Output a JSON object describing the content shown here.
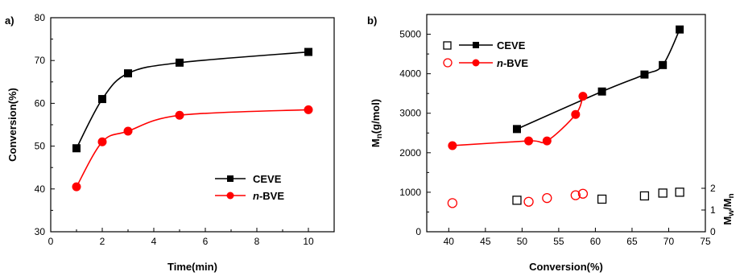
{
  "chart_data": [
    {
      "type": "line",
      "panel": "a)",
      "xlabel": "Time(min)",
      "ylabel": "Conversion(%)",
      "xlim": [
        0,
        11
      ],
      "ylim": [
        30,
        80
      ],
      "xticks": [
        "0",
        "2",
        "4",
        "6",
        "8",
        "10"
      ],
      "yticks": [
        "30",
        "40",
        "50",
        "60",
        "70",
        "80"
      ],
      "legend_position": "bottom-right",
      "series": [
        {
          "name": "CEVE",
          "name_plain": "CEVE",
          "color": "#000000",
          "marker": "square-filled",
          "x": [
            1,
            2,
            3,
            5,
            10
          ],
          "y": [
            49.5,
            61,
            67,
            69.5,
            72
          ]
        },
        {
          "name": "n-BVE",
          "name_prefix": "n",
          "name_plain": "-BVE",
          "color": "#ff0000",
          "marker": "circle-filled",
          "x": [
            1,
            2,
            3,
            5,
            10
          ],
          "y": [
            40.5,
            51,
            53.5,
            57.2,
            58.5
          ]
        }
      ]
    },
    {
      "type": "scatter",
      "panel": "b)",
      "xlabel": "Conversion(%)",
      "ylabel_main": "M",
      "ylabel_sub": "n",
      "ylabel_rest": "(g/mol)",
      "y2label_main": "M",
      "y2label_sub1": "w",
      "y2label_mid": "/M",
      "y2label_sub2": "n",
      "xlim": [
        37,
        75
      ],
      "ylim": [
        0,
        5500
      ],
      "y2lim": [
        0,
        10
      ],
      "xticks": [
        "40",
        "45",
        "50",
        "55",
        "60",
        "65",
        "70",
        "75"
      ],
      "yticks": [
        "0",
        "1000",
        "2000",
        "3000",
        "4000",
        "5000"
      ],
      "y2ticks": [
        "0",
        "1",
        "2"
      ],
      "legend_position": "top-left",
      "series": [
        {
          "name": "CEVE",
          "name_plain": "CEVE",
          "color": "#000000",
          "marker": "square-filled",
          "axis": "left",
          "x": [
            49.3,
            60.9,
            66.7,
            69.2,
            71.5
          ],
          "y": [
            2600,
            3550,
            3980,
            4220,
            5120
          ]
        },
        {
          "name": "n-BVE",
          "name_prefix": "n",
          "name_plain": "-BVE",
          "color": "#ff0000",
          "marker": "circle-filled",
          "axis": "left",
          "x": [
            40.5,
            50.9,
            53.4,
            57.3,
            58.3
          ],
          "y": [
            2180,
            2300,
            2300,
            2970,
            3430
          ]
        },
        {
          "name": "CEVE Mw/Mn",
          "color": "#000000",
          "marker": "square-open",
          "axis": "right",
          "x": [
            49.3,
            60.9,
            66.7,
            69.2,
            71.5
          ],
          "y": [
            1.45,
            1.5,
            1.65,
            1.78,
            1.82
          ]
        },
        {
          "name": "n-BVE Mw/Mn",
          "color": "#ff0000",
          "marker": "circle-open",
          "axis": "right",
          "x": [
            40.5,
            50.9,
            53.4,
            57.3,
            58.3
          ],
          "y": [
            1.32,
            1.38,
            1.55,
            1.68,
            1.75
          ]
        }
      ]
    }
  ]
}
